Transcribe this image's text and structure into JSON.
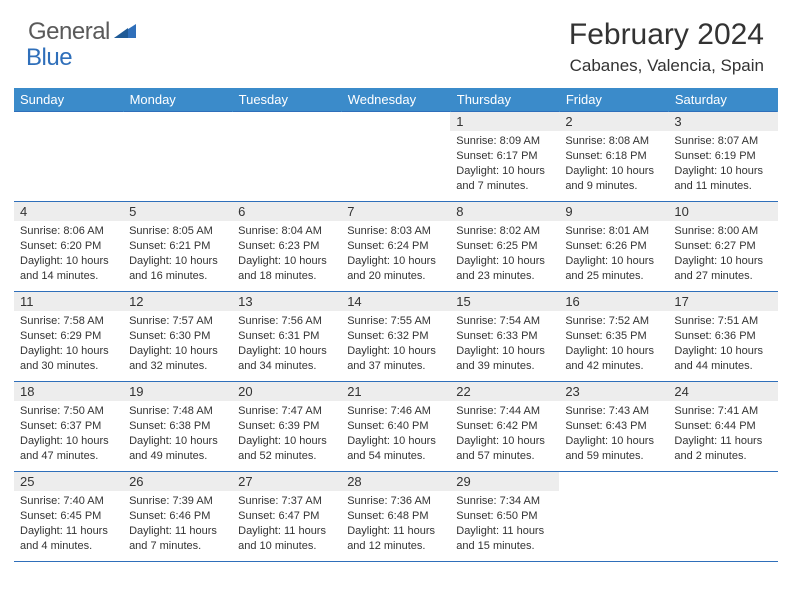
{
  "brand": {
    "word1": "General",
    "word2": "Blue"
  },
  "title": "February 2024",
  "location": "Cabanes, Valencia, Spain",
  "colors": {
    "header_bg": "#3b8bca",
    "header_text": "#ffffff",
    "border": "#2f6fba",
    "daynum_bg": "#ededed",
    "text": "#333333",
    "logo_gray": "#5a5a5a",
    "logo_blue": "#2f6fba",
    "background": "#ffffff"
  },
  "typography": {
    "title_fontsize": 30,
    "location_fontsize": 17,
    "header_fontsize": 13,
    "cell_fontsize": 11
  },
  "weekdays": [
    "Sunday",
    "Monday",
    "Tuesday",
    "Wednesday",
    "Thursday",
    "Friday",
    "Saturday"
  ],
  "weeks": [
    [
      null,
      null,
      null,
      null,
      {
        "n": "1",
        "sr": "8:09 AM",
        "ss": "6:17 PM",
        "dl": "10 hours and 7 minutes."
      },
      {
        "n": "2",
        "sr": "8:08 AM",
        "ss": "6:18 PM",
        "dl": "10 hours and 9 minutes."
      },
      {
        "n": "3",
        "sr": "8:07 AM",
        "ss": "6:19 PM",
        "dl": "10 hours and 11 minutes."
      }
    ],
    [
      {
        "n": "4",
        "sr": "8:06 AM",
        "ss": "6:20 PM",
        "dl": "10 hours and 14 minutes."
      },
      {
        "n": "5",
        "sr": "8:05 AM",
        "ss": "6:21 PM",
        "dl": "10 hours and 16 minutes."
      },
      {
        "n": "6",
        "sr": "8:04 AM",
        "ss": "6:23 PM",
        "dl": "10 hours and 18 minutes."
      },
      {
        "n": "7",
        "sr": "8:03 AM",
        "ss": "6:24 PM",
        "dl": "10 hours and 20 minutes."
      },
      {
        "n": "8",
        "sr": "8:02 AM",
        "ss": "6:25 PM",
        "dl": "10 hours and 23 minutes."
      },
      {
        "n": "9",
        "sr": "8:01 AM",
        "ss": "6:26 PM",
        "dl": "10 hours and 25 minutes."
      },
      {
        "n": "10",
        "sr": "8:00 AM",
        "ss": "6:27 PM",
        "dl": "10 hours and 27 minutes."
      }
    ],
    [
      {
        "n": "11",
        "sr": "7:58 AM",
        "ss": "6:29 PM",
        "dl": "10 hours and 30 minutes."
      },
      {
        "n": "12",
        "sr": "7:57 AM",
        "ss": "6:30 PM",
        "dl": "10 hours and 32 minutes."
      },
      {
        "n": "13",
        "sr": "7:56 AM",
        "ss": "6:31 PM",
        "dl": "10 hours and 34 minutes."
      },
      {
        "n": "14",
        "sr": "7:55 AM",
        "ss": "6:32 PM",
        "dl": "10 hours and 37 minutes."
      },
      {
        "n": "15",
        "sr": "7:54 AM",
        "ss": "6:33 PM",
        "dl": "10 hours and 39 minutes."
      },
      {
        "n": "16",
        "sr": "7:52 AM",
        "ss": "6:35 PM",
        "dl": "10 hours and 42 minutes."
      },
      {
        "n": "17",
        "sr": "7:51 AM",
        "ss": "6:36 PM",
        "dl": "10 hours and 44 minutes."
      }
    ],
    [
      {
        "n": "18",
        "sr": "7:50 AM",
        "ss": "6:37 PM",
        "dl": "10 hours and 47 minutes."
      },
      {
        "n": "19",
        "sr": "7:48 AM",
        "ss": "6:38 PM",
        "dl": "10 hours and 49 minutes."
      },
      {
        "n": "20",
        "sr": "7:47 AM",
        "ss": "6:39 PM",
        "dl": "10 hours and 52 minutes."
      },
      {
        "n": "21",
        "sr": "7:46 AM",
        "ss": "6:40 PM",
        "dl": "10 hours and 54 minutes."
      },
      {
        "n": "22",
        "sr": "7:44 AM",
        "ss": "6:42 PM",
        "dl": "10 hours and 57 minutes."
      },
      {
        "n": "23",
        "sr": "7:43 AM",
        "ss": "6:43 PM",
        "dl": "10 hours and 59 minutes."
      },
      {
        "n": "24",
        "sr": "7:41 AM",
        "ss": "6:44 PM",
        "dl": "11 hours and 2 minutes."
      }
    ],
    [
      {
        "n": "25",
        "sr": "7:40 AM",
        "ss": "6:45 PM",
        "dl": "11 hours and 4 minutes."
      },
      {
        "n": "26",
        "sr": "7:39 AM",
        "ss": "6:46 PM",
        "dl": "11 hours and 7 minutes."
      },
      {
        "n": "27",
        "sr": "7:37 AM",
        "ss": "6:47 PM",
        "dl": "11 hours and 10 minutes."
      },
      {
        "n": "28",
        "sr": "7:36 AM",
        "ss": "6:48 PM",
        "dl": "11 hours and 12 minutes."
      },
      {
        "n": "29",
        "sr": "7:34 AM",
        "ss": "6:50 PM",
        "dl": "11 hours and 15 minutes."
      },
      null,
      null
    ]
  ],
  "labels": {
    "sunrise": "Sunrise:",
    "sunset": "Sunset:",
    "daylight": "Daylight:"
  }
}
